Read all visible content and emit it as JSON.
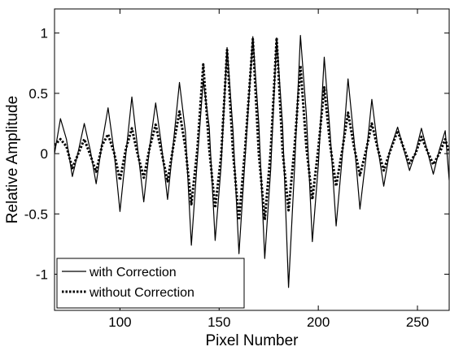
{
  "chart_data": {
    "type": "line",
    "title": "",
    "xlabel": "Pixel Number",
    "ylabel": "Relative Amplitude",
    "xlim": [
      67,
      266
    ],
    "ylim": [
      -1.3,
      1.2
    ],
    "x_ticks": [
      100,
      150,
      200,
      250
    ],
    "y_ticks": [
      -1,
      -0.5,
      0,
      0.5,
      1
    ],
    "grid": false,
    "legend": "bottom-left",
    "series": [
      {
        "name": "with Correction",
        "style": "solid",
        "points": [
          [
            67,
            0.0
          ],
          [
            70,
            0.29
          ],
          [
            73,
            0.12
          ],
          [
            76,
            -0.19
          ],
          [
            79,
            0.02
          ],
          [
            82,
            0.25
          ],
          [
            85,
            0.03
          ],
          [
            88,
            -0.25
          ],
          [
            91,
            0.09
          ],
          [
            94,
            0.38
          ],
          [
            97,
            0.02
          ],
          [
            100,
            -0.48
          ],
          [
            103,
            0.0
          ],
          [
            106,
            0.47
          ],
          [
            109,
            0.03
          ],
          [
            112,
            -0.4
          ],
          [
            115,
            0.06
          ],
          [
            118,
            0.42
          ],
          [
            121,
            0.06
          ],
          [
            124,
            -0.38
          ],
          [
            127,
            0.1
          ],
          [
            130,
            0.59
          ],
          [
            133,
            0.18
          ],
          [
            136,
            -0.76
          ],
          [
            139,
            -0.05
          ],
          [
            142,
            0.61
          ],
          [
            145,
            0.22
          ],
          [
            148,
            -0.72
          ],
          [
            151,
            -0.1
          ],
          [
            154,
            0.88
          ],
          [
            157,
            0.19
          ],
          [
            160,
            -0.83
          ],
          [
            163,
            -0.06
          ],
          [
            167,
            0.97
          ],
          [
            170,
            0.25
          ],
          [
            173,
            -0.87
          ],
          [
            176,
            -0.13
          ],
          [
            179,
            0.96
          ],
          [
            182,
            0.23
          ],
          [
            185,
            -1.11
          ],
          [
            188,
            -0.13
          ],
          [
            191,
            0.98
          ],
          [
            194,
            0.32
          ],
          [
            197,
            -0.73
          ],
          [
            200,
            -0.1
          ],
          [
            203,
            0.8
          ],
          [
            206,
            0.16
          ],
          [
            209,
            -0.6
          ],
          [
            212,
            -0.04
          ],
          [
            215,
            0.62
          ],
          [
            218,
            0.12
          ],
          [
            221,
            -0.46
          ],
          [
            224,
            -0.04
          ],
          [
            227,
            0.45
          ],
          [
            230,
            0.05
          ],
          [
            233,
            -0.27
          ],
          [
            236,
            0.02
          ],
          [
            240,
            0.22
          ],
          [
            243,
            0.04
          ],
          [
            246,
            -0.14
          ],
          [
            249,
            0.01
          ],
          [
            252,
            0.21
          ],
          [
            255,
            0.02
          ],
          [
            258,
            -0.17
          ],
          [
            261,
            0.03
          ],
          [
            264,
            0.19
          ],
          [
            266,
            -0.22
          ]
        ]
      },
      {
        "name": "without Correction",
        "style": "dotted",
        "points": [
          [
            67,
            0.07
          ],
          [
            70,
            0.12
          ],
          [
            73,
            0.06
          ],
          [
            76,
            -0.12
          ],
          [
            79,
            0.0
          ],
          [
            82,
            0.12
          ],
          [
            85,
            -0.01
          ],
          [
            88,
            -0.15
          ],
          [
            91,
            0.07
          ],
          [
            94,
            0.16
          ],
          [
            97,
            0.01
          ],
          [
            100,
            -0.22
          ],
          [
            103,
            0.04
          ],
          [
            106,
            0.21
          ],
          [
            109,
            -0.01
          ],
          [
            112,
            -0.2
          ],
          [
            115,
            0.05
          ],
          [
            118,
            0.24
          ],
          [
            121,
            0.01
          ],
          [
            124,
            -0.23
          ],
          [
            127,
            0.07
          ],
          [
            130,
            0.35
          ],
          [
            133,
            0.05
          ],
          [
            136,
            -0.42
          ],
          [
            139,
            0.03
          ],
          [
            142,
            0.74
          ],
          [
            145,
            0.04
          ],
          [
            148,
            -0.45
          ],
          [
            151,
            -0.02
          ],
          [
            154,
            0.86
          ],
          [
            157,
            0.01
          ],
          [
            160,
            -0.55
          ],
          [
            163,
            0.02
          ],
          [
            167,
            0.95
          ],
          [
            170,
            0.0
          ],
          [
            173,
            -0.55
          ],
          [
            176,
            0.02
          ],
          [
            179,
            0.96
          ],
          [
            182,
            0.02
          ],
          [
            185,
            -0.47
          ],
          [
            188,
            0.05
          ],
          [
            191,
            0.73
          ],
          [
            194,
            0.05
          ],
          [
            197,
            -0.38
          ],
          [
            200,
            0.04
          ],
          [
            203,
            0.55
          ],
          [
            206,
            0.07
          ],
          [
            209,
            -0.27
          ],
          [
            212,
            0.02
          ],
          [
            215,
            0.34
          ],
          [
            218,
            0.06
          ],
          [
            221,
            -0.18
          ],
          [
            224,
            0.02
          ],
          [
            227,
            0.25
          ],
          [
            230,
            0.04
          ],
          [
            233,
            -0.14
          ],
          [
            236,
            0.01
          ],
          [
            240,
            0.19
          ],
          [
            243,
            0.05
          ],
          [
            246,
            -0.08
          ],
          [
            249,
            0.0
          ],
          [
            252,
            0.14
          ],
          [
            255,
            0.02
          ],
          [
            258,
            -0.09
          ],
          [
            261,
            0.0
          ],
          [
            264,
            0.12
          ],
          [
            266,
            0.01
          ]
        ]
      }
    ]
  }
}
